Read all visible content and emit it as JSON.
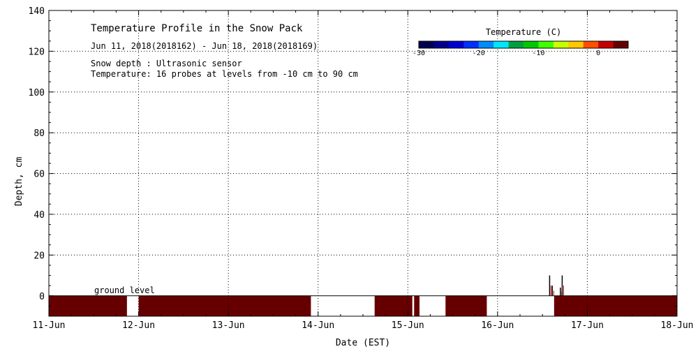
{
  "chart_data": {
    "type": "area",
    "title": "Temperature Profile in the Snow Pack",
    "subtitle": "Jun 11, 2018(2018162) - Jun 18, 2018(2018169)",
    "notes": [
      "Snow depth : Ultrasonic sensor",
      "Temperature: 16 probes at levels from -10 cm to 90 cm"
    ],
    "xlabel": "Date (EST)",
    "ylabel": "Depth, cm",
    "xlim": [
      0,
      7
    ],
    "ylim": [
      -10,
      140
    ],
    "x_ticks": [
      "11-Jun",
      "12-Jun",
      "13-Jun",
      "14-Jun",
      "15-Jun",
      "16-Jun",
      "17-Jun",
      "18-Jun"
    ],
    "y_ticks": [
      0,
      20,
      40,
      60,
      80,
      100,
      120,
      140
    ],
    "grid": true,
    "ground_level_label": "ground level",
    "colorbar": {
      "title": "Temperature (C)",
      "range": [
        -30,
        5
      ],
      "ticks": [
        "-30",
        "-20",
        "-10",
        "0"
      ],
      "tick_values": [
        -30,
        -20,
        -10,
        0
      ],
      "placement": "top-right",
      "colors": [
        "#000050",
        "#00008c",
        "#0000d2",
        "#0030ff",
        "#008cff",
        "#00e6ff",
        "#00a040",
        "#00c800",
        "#40ff00",
        "#c8ff00",
        "#ffc800",
        "#ff5000",
        "#c80000",
        "#640000"
      ]
    },
    "soil_bands": {
      "depth_range_cm": [
        -10,
        0
      ],
      "color": "#660000",
      "intervals_days": [
        [
          0.0,
          0.87
        ],
        [
          1.0,
          2.92
        ],
        [
          3.63,
          4.05
        ],
        [
          4.07,
          4.13
        ],
        [
          4.42,
          4.88
        ],
        [
          5.63,
          7.0
        ]
      ]
    },
    "snow_depth_spikes": [
      {
        "day": 5.58,
        "depth": 10
      },
      {
        "day": 5.61,
        "depth": 5
      },
      {
        "day": 5.7,
        "depth": 4
      },
      {
        "day": 5.72,
        "depth": 10
      }
    ]
  }
}
